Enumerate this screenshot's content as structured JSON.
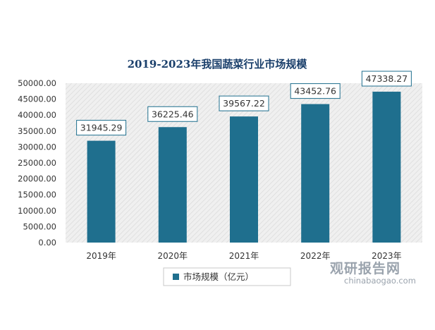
{
  "chart_data": {
    "type": "bar",
    "title": "2019-2023年我国蔬菜行业市场规模",
    "categories": [
      "2019年",
      "2020年",
      "2021年",
      "2022年",
      "2023年"
    ],
    "series": [
      {
        "name": "市场规模（亿元）",
        "values": [
          31945.29,
          36225.46,
          39567.22,
          43452.76,
          47338.27
        ]
      }
    ],
    "data_labels": [
      "31945.29",
      "36225.46",
      "39567.22",
      "43452.76",
      "47338.27"
    ],
    "y_ticks": [
      "0.00",
      "5000.00",
      "10000.00",
      "15000.00",
      "20000.00",
      "25000.00",
      "30000.00",
      "35000.00",
      "40000.00",
      "45000.00",
      "50000.00"
    ],
    "ylim": [
      0,
      50000
    ],
    "grid": false,
    "legend_position": "bottom",
    "colors": {
      "bar": "#1f6f8e",
      "title": "#1a3f6b",
      "plot_background": "#ececec",
      "label_border": "#1f6f8e"
    }
  },
  "watermark": {
    "text_cn": "观研报告网",
    "text_en": "chinabaogao.com"
  }
}
